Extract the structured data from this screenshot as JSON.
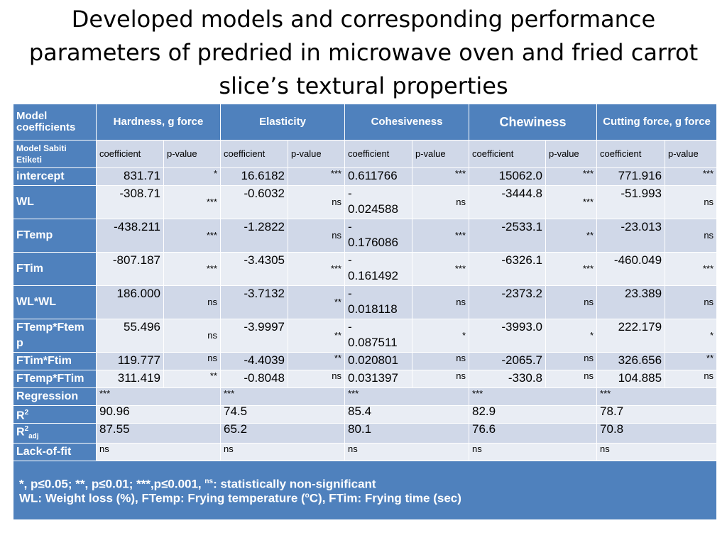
{
  "title": [
    "Developed models and corresponding performance",
    "parameters of predried in microwave oven and fried carrot",
    "slice’s textural properties"
  ],
  "header": {
    "model_coefficients": [
      "Model",
      "coefficients"
    ],
    "groups": [
      "Hardness, g  force",
      "Elasticity",
      "Cohesiveness",
      "Chewiness",
      "Cutting force, g force"
    ],
    "sub_first": [
      "Model Sabiti",
      "Etiketi"
    ],
    "coefficient": "coefficient",
    "pvalue": "p-value"
  },
  "rows": [
    {
      "label": "intercept",
      "cells": [
        [
          "831.71",
          "*"
        ],
        [
          "16.6182",
          "***"
        ],
        [
          "0.611766",
          "***"
        ],
        [
          "15062.0",
          "***"
        ],
        [
          "771.916",
          "***"
        ]
      ]
    },
    {
      "label": "WL",
      "cells": [
        [
          "-308.71",
          "***"
        ],
        [
          "-0.6032",
          "ns"
        ],
        [
          "-\n0.024588",
          "ns"
        ],
        [
          "-3444.8",
          "***"
        ],
        [
          "-51.993",
          "ns"
        ]
      ]
    },
    {
      "label": "FTemp",
      "cells": [
        [
          "-438.211",
          "***"
        ],
        [
          "-1.2822",
          "ns"
        ],
        [
          "-\n0.176086",
          "***"
        ],
        [
          "-2533.1",
          "**"
        ],
        [
          "-23.013",
          "ns"
        ]
      ]
    },
    {
      "label": "FTim",
      "cells": [
        [
          "-807.187",
          "***"
        ],
        [
          "-3.4305",
          "***"
        ],
        [
          "-\n0.161492",
          "***"
        ],
        [
          "-6326.1",
          "***"
        ],
        [
          "-460.049",
          "***"
        ]
      ]
    },
    {
      "label": "WL*WL",
      "cells": [
        [
          "186.000",
          "ns"
        ],
        [
          "-3.7132",
          "**"
        ],
        [
          "-\n0.018118",
          "ns"
        ],
        [
          "-2373.2",
          "ns"
        ],
        [
          "23.389",
          "ns"
        ]
      ]
    },
    {
      "label": "FTemp*Ftem\np",
      "cells": [
        [
          "55.496",
          "ns"
        ],
        [
          "-3.9997",
          "**"
        ],
        [
          "-\n0.087511",
          "*"
        ],
        [
          "-3993.0",
          "*"
        ],
        [
          "222.179",
          "*"
        ]
      ]
    },
    {
      "label": "FTim*Ftim",
      "cells": [
        [
          "119.777",
          "ns"
        ],
        [
          "-4.4039",
          "**"
        ],
        [
          "0.020801",
          "ns"
        ],
        [
          "-2065.7",
          "ns"
        ],
        [
          "326.656",
          "**"
        ]
      ]
    },
    {
      "label": "FTemp*FTim",
      "cells": [
        [
          "311.419",
          "**"
        ],
        [
          "-0.8048",
          "ns"
        ],
        [
          "0.031397",
          "ns"
        ],
        [
          "-330.8",
          "ns"
        ],
        [
          "104.885",
          "ns"
        ]
      ]
    }
  ],
  "regression": {
    "label": "Regression",
    "values": [
      "***",
      "***",
      "***",
      "***",
      "***"
    ]
  },
  "r2": {
    "label": "R",
    "sup": "2",
    "values": [
      "90.96",
      "74.5",
      "85.4",
      "82.9",
      "78.7"
    ]
  },
  "r2adj": {
    "label": "R",
    "sup": "2",
    "sub": "adj",
    "values": [
      "87.55",
      "65.2",
      "80.1",
      "76.6",
      "70.8"
    ]
  },
  "lack_of_fit": {
    "label": "Lack-of-fit",
    "values": [
      "ns",
      "ns",
      "ns",
      "ns",
      "ns"
    ]
  },
  "footnote": {
    "line1_part1": "*, p≤0.05; **, p≤0.01; ***,p≤0.001, ",
    "line1_sup": "ns",
    "line1_part2": ": statistically non-significant",
    "line2_part1": "WL: Weight loss (%), FTemp: Frying temperature (",
    "line2_sup": "o",
    "line2_part2": "C), FTim: Frying time (sec)"
  },
  "colors": {
    "header": "#4f81bd",
    "band_dark": "#d0d8e8",
    "band_light": "#e9edf4"
  }
}
